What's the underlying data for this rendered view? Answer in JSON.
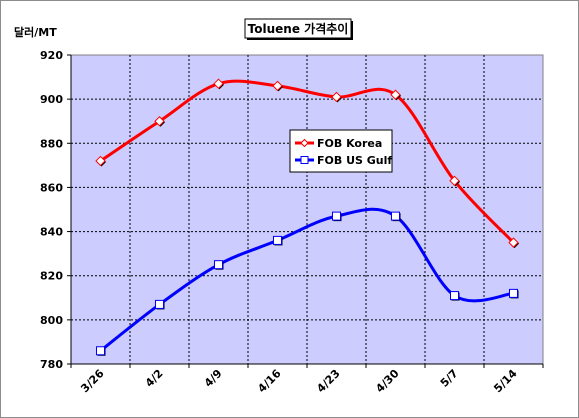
{
  "chart_data": {
    "type": "line",
    "title": "Toluene 가격추이",
    "ylabel": "달러/MT",
    "xlabel": "",
    "categories": [
      "3/26",
      "4/2",
      "4/9",
      "4/16",
      "4/23",
      "4/30",
      "5/7",
      "5/14"
    ],
    "ylim": [
      780,
      920
    ],
    "yticks": [
      780,
      800,
      820,
      840,
      860,
      880,
      900,
      920
    ],
    "grid": true,
    "legend_position": "center-right",
    "series": [
      {
        "name": "FOB Korea",
        "values": [
          872,
          890,
          907,
          906,
          901,
          902,
          863,
          835
        ],
        "color": "#ff0000",
        "marker": "diamond"
      },
      {
        "name": "FOB US Gulf",
        "values": [
          786,
          807,
          825,
          836,
          847,
          847,
          811,
          812
        ],
        "color": "#0000ff",
        "marker": "square"
      }
    ],
    "plot_background": "#ccccff"
  }
}
